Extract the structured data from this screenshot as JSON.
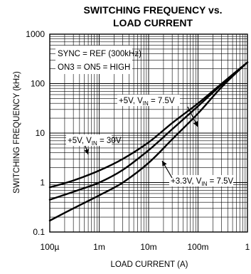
{
  "chart_data": {
    "type": "line",
    "title": [
      "SWITCHING FREQUENCY vs.",
      "LOAD CURRENT"
    ],
    "xlabel": "LOAD CURRENT (A)",
    "ylabel": "SWITCHING FREQUENCY (kHz)",
    "xscale": "log",
    "yscale": "log",
    "xlim": [
      0.0001,
      1
    ],
    "ylim": [
      0.1,
      1000
    ],
    "xticks": [
      0.0001,
      0.001,
      0.01,
      0.1,
      1
    ],
    "xtick_labels": [
      "100µ",
      "1m",
      "10m",
      "100m",
      "1"
    ],
    "yticks": [
      0.1,
      1,
      10,
      100,
      1000
    ],
    "ytick_labels": [
      "0.1",
      "1",
      "10",
      "100",
      "1000"
    ],
    "grid": true,
    "annotations": [
      {
        "text": "SYNC = REF (300kHz)"
      },
      {
        "text": "ON3 = ON5 = HIGH"
      }
    ],
    "series": [
      {
        "label_parts": [
          "+5V, V",
          "IN",
          " = 30V"
        ],
        "x": [
          0.0001,
          0.0003,
          0.001,
          0.003,
          0.01,
          0.03,
          0.1,
          0.3,
          1
        ],
        "y": [
          0.8,
          1.1,
          1.75,
          3.0,
          6.5,
          16,
          40,
          100,
          270
        ]
      },
      {
        "label_parts": [
          "+5V, V",
          "IN",
          " = 7.5V"
        ],
        "x": [
          0.0001,
          0.0003,
          0.001,
          0.003,
          0.01,
          0.03,
          0.1,
          0.3,
          1
        ],
        "y": [
          0.45,
          0.65,
          1.0,
          1.8,
          4.5,
          12,
          35,
          95,
          270
        ]
      },
      {
        "label_parts": [
          "+3.3V, V",
          "IN",
          " = 7.5V"
        ],
        "x": [
          0.0001,
          0.0003,
          0.001,
          0.003,
          0.01,
          0.03,
          0.1,
          0.3,
          1
        ],
        "y": [
          0.17,
          0.3,
          0.55,
          1.0,
          2.5,
          7.5,
          25,
          85,
          270
        ]
      }
    ]
  }
}
